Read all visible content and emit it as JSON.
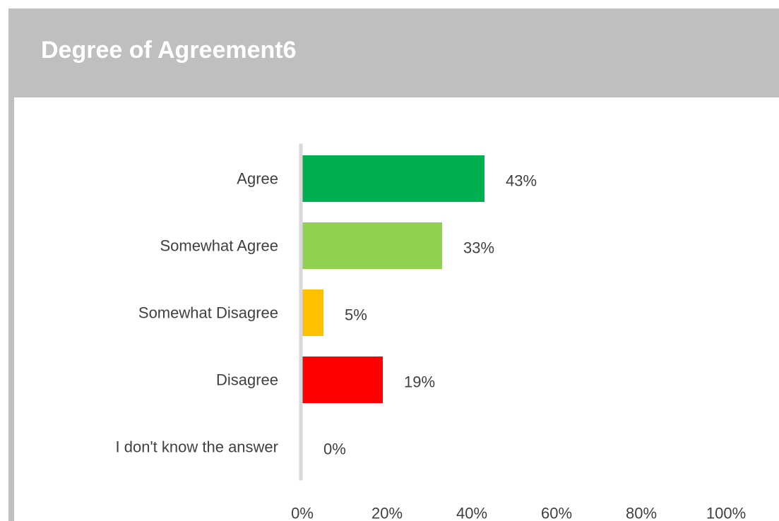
{
  "panel": {
    "title": "Degree of Agreement6"
  },
  "chart_data": {
    "type": "bar",
    "orientation": "horizontal",
    "title": "Degree of Agreement6",
    "categories": [
      "Agree",
      "Somewhat Agree",
      "Somewhat Disagree",
      "Disagree",
      "I don't know the answer"
    ],
    "values": [
      43,
      33,
      5,
      19,
      0
    ],
    "value_labels": [
      "43%",
      "33%",
      "5%",
      "19%",
      "0%"
    ],
    "colors": [
      "#00b050",
      "#92d050",
      "#ffc000",
      "#ff0000",
      "#bfbfbf"
    ],
    "xlim": [
      0,
      100
    ],
    "x_ticks": [
      0,
      20,
      40,
      60,
      80,
      100
    ],
    "x_tick_labels": [
      "0%",
      "20%",
      "40%",
      "60%",
      "80%",
      "100%"
    ],
    "xlabel": "",
    "ylabel": "",
    "grid": false,
    "legend": "none"
  }
}
